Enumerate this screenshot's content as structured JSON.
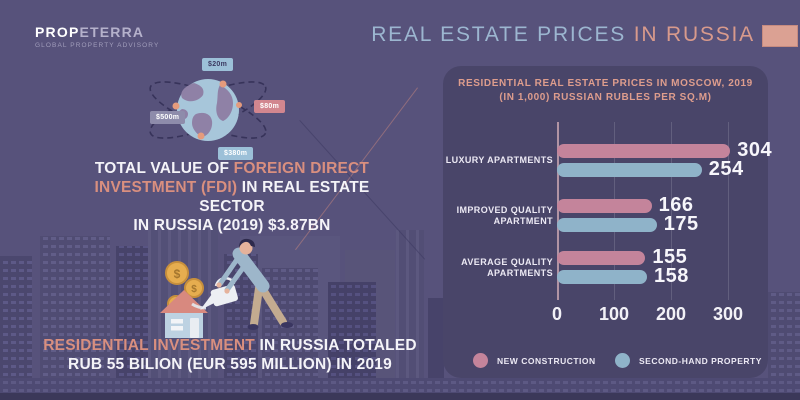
{
  "brand": {
    "name_bold": "PROP",
    "name_light": "ETERRA",
    "tagline": "GLOBAL PROPERTY ADVISORY"
  },
  "header": {
    "title_part1": "REAL ESTATE PRICES",
    "title_part2": "IN RUSSIA"
  },
  "globe_labels": {
    "top": "$20m",
    "right": "$80m",
    "left": "$500m",
    "bottom": "$380m"
  },
  "fdi": {
    "l1a": "TOTAL VALUE OF ",
    "l1b": "FOREIGN DIRECT",
    "l2a": "INVESTMENT (FDI)",
    "l2b": " IN REAL ESTATE SECTOR",
    "l3": "IN RUSSIA (2019) $3.87BN"
  },
  "residential": {
    "l1a": "RESIDENTIAL INVESTMENT",
    "l1b": " IN RUSSIA TOTALED",
    "l2": "RUB 55 BILION (EUR 595 MILLION) IN 2019"
  },
  "chart_data": {
    "type": "bar",
    "orientation": "horizontal",
    "title_line1": "RESIDENTIAL REAL ESTATE PRICES IN MOSCOW, 2019",
    "title_line2": "(IN 1,000) RUSSIAN RUBLES PER SQ.M)",
    "categories": [
      [
        "LUXURY APARTMENTS"
      ],
      [
        "IMPROVED QUALITY",
        "APARTMENT"
      ],
      [
        "AVERAGE QUALITY",
        "APARTMENTS"
      ]
    ],
    "series": [
      {
        "name": "NEW CONSTRUCTION",
        "color": "#c4849b",
        "values": [
          304,
          166,
          155
        ]
      },
      {
        "name": "SECOND-HAND PROPERTY",
        "color": "#8fb3c9",
        "values": [
          254,
          175,
          158
        ]
      }
    ],
    "xticks": [
      0,
      100,
      200,
      300
    ],
    "xlim": [
      0,
      300
    ],
    "grid": true,
    "legend_position": "bottom"
  },
  "colors": {
    "background": "#57527b",
    "card": "#494569",
    "accent_pink": "#d89a8c",
    "accent_blue": "#9cb6d0",
    "bar_pink": "#c4849b",
    "bar_blue": "#8fb3c9"
  }
}
